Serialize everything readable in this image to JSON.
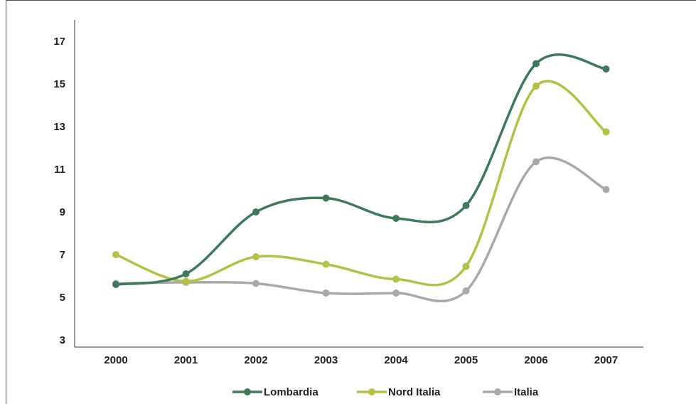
{
  "chart_data": {
    "type": "line",
    "title": "",
    "xlabel": "",
    "ylabel": "",
    "x": [
      "2000",
      "2001",
      "2002",
      "2003",
      "2004",
      "2005",
      "2006",
      "2007"
    ],
    "yticks": [
      "3",
      "5",
      "7",
      "9",
      "11",
      "13",
      "15",
      "17"
    ],
    "ylim": [
      3,
      17
    ],
    "grid": false,
    "legend_position": "bottom",
    "smooth": true,
    "series": [
      {
        "name": "Lombardia",
        "color": "#3d7a5a",
        "values": [
          5.6,
          6.1,
          9.0,
          9.65,
          8.7,
          9.3,
          15.95,
          15.7
        ]
      },
      {
        "name": "Nord Italia",
        "color": "#b3c144",
        "values": [
          7.0,
          5.75,
          6.9,
          6.55,
          5.85,
          6.45,
          14.9,
          12.75
        ]
      },
      {
        "name": "Italia",
        "color": "#aaa9a4",
        "values": [
          5.65,
          5.7,
          5.65,
          5.2,
          5.2,
          5.3,
          11.35,
          10.05
        ]
      }
    ]
  }
}
